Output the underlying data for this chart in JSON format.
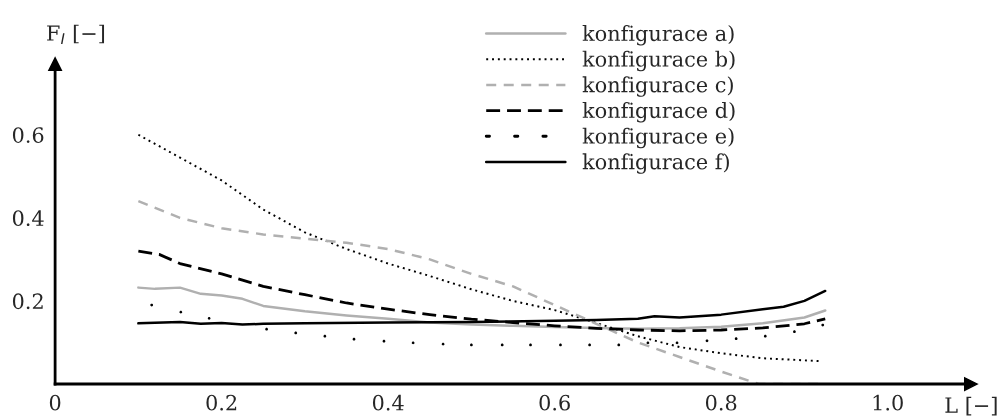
{
  "chart_data": {
    "type": "line",
    "xlabel": "L [−]",
    "ylabel": "F$_{I}$ [−]",
    "xlim": [
      0,
      1.1
    ],
    "ylim": [
      0,
      0.77
    ],
    "xticks": [
      {
        "value": 0,
        "label": "0"
      },
      0.2,
      0.4,
      0.6,
      0.8,
      {
        "value": 1.0,
        "label": "1.0"
      }
    ],
    "yticks": [
      0.2,
      0.4,
      0.6
    ],
    "grid": false,
    "legend": "top",
    "series": [
      {
        "name": "konfigurace a)",
        "color": "#b0b0b0",
        "line_style": "solid",
        "x": [
          0.1,
          0.12,
          0.15,
          0.175,
          0.2,
          0.225,
          0.25,
          0.3,
          0.35,
          0.4,
          0.45,
          0.5,
          0.55,
          0.6,
          0.65,
          0.7,
          0.75,
          0.8,
          0.85,
          0.9,
          0.925
        ],
        "values": [
          0.232,
          0.229,
          0.232,
          0.217,
          0.213,
          0.205,
          0.188,
          0.175,
          0.165,
          0.157,
          0.148,
          0.143,
          0.14,
          0.137,
          0.135,
          0.133,
          0.134,
          0.138,
          0.146,
          0.16,
          0.177
        ]
      },
      {
        "name": "konfigurace b)",
        "color": "#000000",
        "line_style": "dotted",
        "x": [
          0.1,
          0.15,
          0.2,
          0.25,
          0.3,
          0.35,
          0.4,
          0.45,
          0.5,
          0.55,
          0.6,
          0.65,
          0.7,
          0.75,
          0.8,
          0.85,
          0.92
        ],
        "values": [
          0.6,
          0.545,
          0.49,
          0.42,
          0.365,
          0.325,
          0.29,
          0.26,
          0.228,
          0.2,
          0.178,
          0.147,
          0.115,
          0.089,
          0.074,
          0.062,
          0.055
        ]
      },
      {
        "name": "konfigurace c)",
        "color": "#b0b0b0",
        "line_style": "dashed",
        "x": [
          0.1,
          0.15,
          0.2,
          0.25,
          0.3,
          0.35,
          0.4,
          0.45,
          0.5,
          0.55,
          0.6,
          0.65,
          0.7,
          0.75,
          0.8,
          0.845,
          0.925
        ],
        "values": [
          0.44,
          0.4,
          0.375,
          0.36,
          0.35,
          0.34,
          0.325,
          0.3,
          0.265,
          0.235,
          0.19,
          0.145,
          0.1,
          0.065,
          0.03,
          0,
          0
        ]
      },
      {
        "name": "konfigurace d)",
        "color": "#000000",
        "line_style": "longdash",
        "x": [
          0.1,
          0.125,
          0.15,
          0.2,
          0.25,
          0.3,
          0.35,
          0.4,
          0.45,
          0.5,
          0.55,
          0.6,
          0.65,
          0.7,
          0.75,
          0.8,
          0.85,
          0.9,
          0.925
        ],
        "values": [
          0.32,
          0.312,
          0.29,
          0.265,
          0.235,
          0.215,
          0.195,
          0.18,
          0.167,
          0.156,
          0.148,
          0.14,
          0.134,
          0.13,
          0.128,
          0.13,
          0.135,
          0.145,
          0.157
        ]
      },
      {
        "name": "konfigurace e)",
        "color": "#000000",
        "type": "scatter",
        "x": [
          0.116,
          0.151,
          0.185,
          0.254,
          0.289,
          0.324,
          0.359,
          0.395,
          0.43,
          0.466,
          0.5,
          0.537,
          0.571,
          0.607,
          0.642,
          0.677,
          0.712,
          0.747,
          0.783,
          0.818,
          0.853,
          0.888,
          0.922
        ],
        "values": [
          0.19,
          0.173,
          0.158,
          0.132,
          0.123,
          0.115,
          0.108,
          0.103,
          0.099,
          0.096,
          0.094,
          0.094,
          0.094,
          0.094,
          0.094,
          0.094,
          0.099,
          0.099,
          0.104,
          0.109,
          0.115,
          0.126,
          0.142
        ]
      },
      {
        "name": "konfigurace f)",
        "color": "#000000",
        "line_style": "solid",
        "x": [
          0.1,
          0.15,
          0.175,
          0.2,
          0.225,
          0.25,
          0.3,
          0.4,
          0.5,
          0.6,
          0.65,
          0.7,
          0.72,
          0.75,
          0.8,
          0.85,
          0.875,
          0.9,
          0.925
        ],
        "values": [
          0.146,
          0.149,
          0.145,
          0.147,
          0.143,
          0.145,
          0.146,
          0.148,
          0.149,
          0.152,
          0.154,
          0.157,
          0.163,
          0.16,
          0.167,
          0.18,
          0.186,
          0.2,
          0.224
        ]
      }
    ]
  }
}
